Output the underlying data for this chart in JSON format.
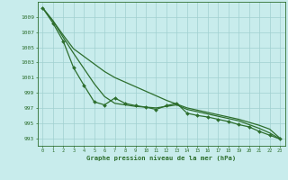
{
  "xlabel": "Graphe pression niveau de la mer (hPa)",
  "xlim": [
    -0.5,
    23.5
  ],
  "ylim": [
    992.0,
    1011.0
  ],
  "yticks": [
    993,
    995,
    997,
    999,
    1001,
    1003,
    1005,
    1007,
    1009
  ],
  "xticks": [
    0,
    1,
    2,
    3,
    4,
    5,
    6,
    7,
    8,
    9,
    10,
    11,
    12,
    13,
    14,
    15,
    16,
    17,
    18,
    19,
    20,
    21,
    22,
    23
  ],
  "background_color": "#c8ecec",
  "grid_color": "#a0d0d0",
  "line_color": "#2d6e2d",
  "line1": [
    1010.2,
    1008.5,
    1006.3,
    1004.2,
    1002.2,
    1000.2,
    998.5,
    997.6,
    997.4,
    997.2,
    997.1,
    997.0,
    997.2,
    997.4,
    996.8,
    996.5,
    996.2,
    995.9,
    995.6,
    995.3,
    994.8,
    994.3,
    993.7,
    992.9
  ],
  "line2": [
    1010.2,
    1008.5,
    1006.6,
    1004.8,
    1003.8,
    1002.8,
    1001.8,
    1001.0,
    1000.4,
    999.8,
    999.2,
    998.6,
    998.0,
    997.5,
    997.0,
    996.7,
    996.4,
    996.1,
    995.8,
    995.5,
    995.1,
    994.7,
    994.2,
    993.0
  ],
  "line3": [
    1010.2,
    1008.2,
    1005.8,
    1002.3,
    1000.0,
    997.8,
    997.4,
    998.3,
    997.6,
    997.3,
    997.1,
    996.8,
    997.3,
    997.6,
    996.3,
    996.0,
    995.8,
    995.5,
    995.2,
    994.8,
    994.5,
    993.9,
    993.4,
    992.9
  ],
  "font_color": "#2d6e2d"
}
